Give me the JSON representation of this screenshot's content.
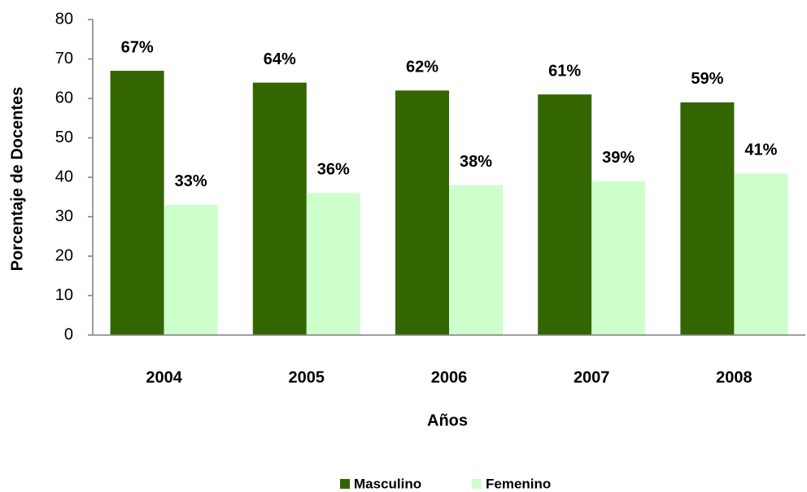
{
  "chart_data": {
    "type": "bar",
    "x_label": "Años",
    "y_label": "Porcentaje de Docentes",
    "categories": [
      "2004",
      "2005",
      "2006",
      "2007",
      "2008"
    ],
    "series": [
      {
        "name": "Masculino",
        "color": "#336600",
        "values": [
          67,
          64,
          62,
          61,
          59
        ],
        "value_labels": [
          "67%",
          "64%",
          "62%",
          "61%",
          "59%"
        ]
      },
      {
        "name": "Femenino",
        "color": "#ccffcc",
        "values": [
          33,
          36,
          38,
          39,
          41
        ],
        "value_labels": [
          "33%",
          "36%",
          "38%",
          "39%",
          "41%"
        ]
      }
    ],
    "ylim": [
      0,
      80
    ],
    "yticks": [
      0,
      10,
      20,
      30,
      40,
      50,
      60,
      70,
      80
    ],
    "grid": false,
    "legend": "bottom"
  }
}
